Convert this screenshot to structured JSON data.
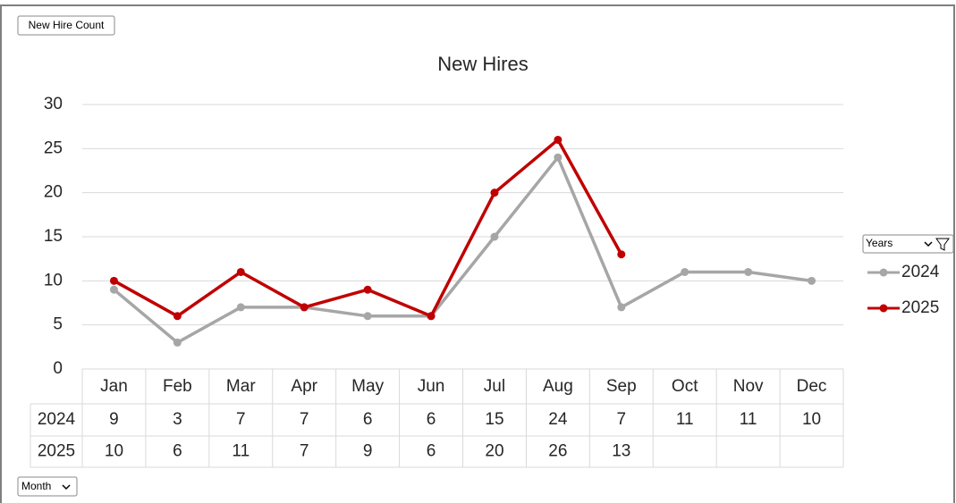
{
  "chart_data": {
    "type": "line",
    "title": "New Hires",
    "categories": [
      "Jan",
      "Feb",
      "Mar",
      "Apr",
      "May",
      "Jun",
      "Jul",
      "Aug",
      "Sep",
      "Oct",
      "Nov",
      "Dec"
    ],
    "series": [
      {
        "name": "2024",
        "color": "#a6a6a6",
        "values": [
          9,
          3,
          7,
          7,
          6,
          6,
          15,
          24,
          7,
          11,
          11,
          10
        ]
      },
      {
        "name": "2025",
        "color": "#c00000",
        "values": [
          10,
          6,
          11,
          7,
          9,
          6,
          20,
          26,
          13,
          null,
          null,
          null
        ]
      }
    ],
    "ylim": [
      0,
      30
    ],
    "yticks": [
      0,
      5,
      10,
      15,
      20,
      25,
      30
    ],
    "grid": true,
    "legend": "right",
    "buttons": {
      "value_field": "New Hire Count",
      "legend_field": "Years",
      "axis_field": "Month"
    }
  }
}
